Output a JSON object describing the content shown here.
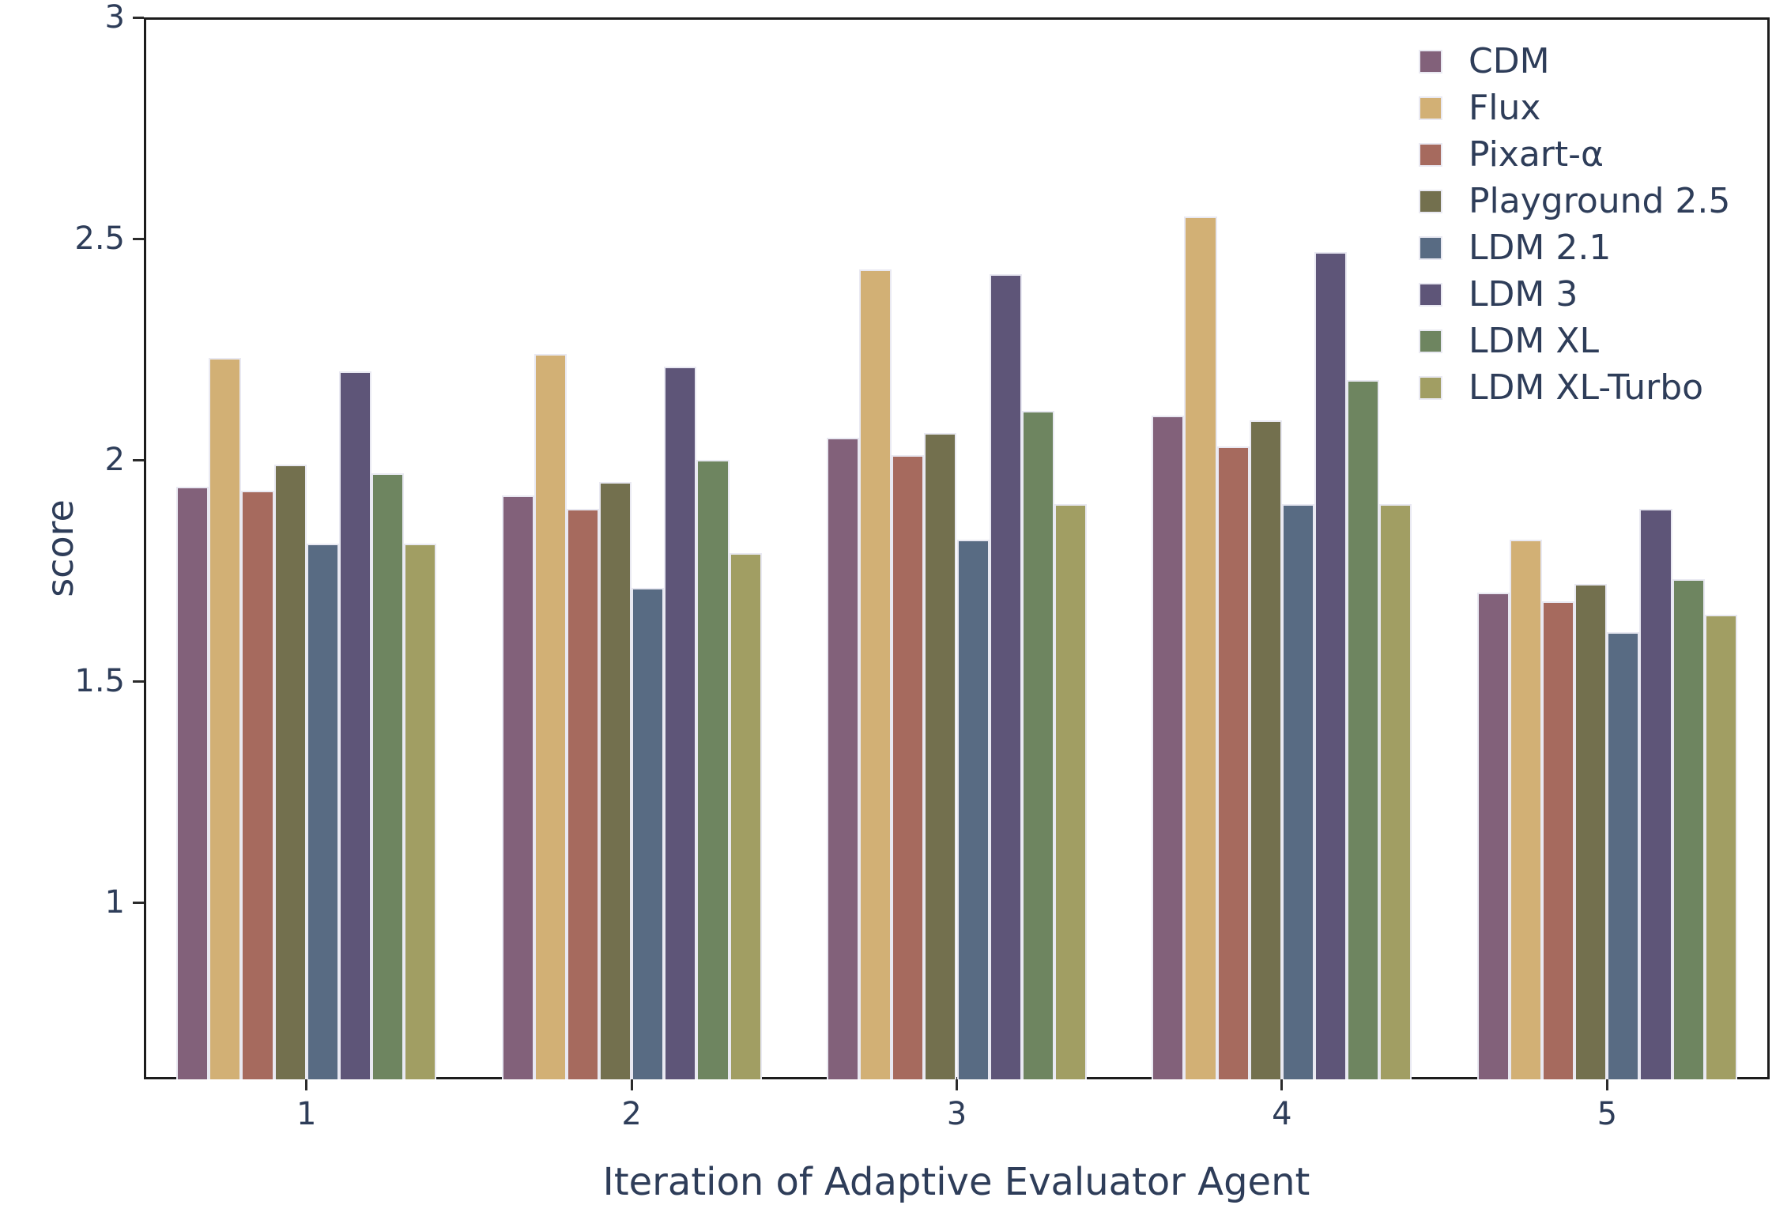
{
  "chart_data": {
    "type": "bar",
    "title": "",
    "xlabel": "Iteration of Adaptive Evaluator Agent",
    "ylabel": "score",
    "categories": [
      "1",
      "2",
      "3",
      "4",
      "5"
    ],
    "ylim": [
      0.6,
      3.0
    ],
    "yticks": [
      {
        "value": 3.0,
        "label": "3"
      },
      {
        "value": 2.5,
        "label": "2.5"
      },
      {
        "value": 2.0,
        "label": "2"
      },
      {
        "value": 1.5,
        "label": "1.5"
      },
      {
        "value": 1.0,
        "label": "1"
      }
    ],
    "grid": false,
    "legend_position": "upper-right-inside",
    "series": [
      {
        "name": "CDM",
        "color": "#82617a",
        "values": [
          1.94,
          1.92,
          2.05,
          2.1,
          1.7
        ]
      },
      {
        "name": "Flux",
        "color": "#d2b075",
        "values": [
          2.23,
          2.24,
          2.43,
          2.55,
          1.82
        ]
      },
      {
        "name": "Pixart-α",
        "color": "#a66a5e",
        "values": [
          1.93,
          1.89,
          2.01,
          2.03,
          1.68
        ]
      },
      {
        "name": "Playground 2.5",
        "color": "#73704e",
        "values": [
          1.99,
          1.95,
          2.06,
          2.09,
          1.72
        ]
      },
      {
        "name": "LDM 2.1",
        "color": "#586b83",
        "values": [
          1.81,
          1.71,
          1.82,
          1.9,
          1.61
        ]
      },
      {
        "name": "LDM 3",
        "color": "#5e5578",
        "values": [
          2.2,
          2.21,
          2.42,
          2.47,
          1.89
        ]
      },
      {
        "name": "LDM XL",
        "color": "#6e8560",
        "values": [
          1.97,
          2.0,
          2.11,
          2.18,
          1.73
        ]
      },
      {
        "name": "LDM XL-Turbo",
        "color": "#a19e63",
        "values": [
          1.81,
          1.79,
          1.9,
          1.9,
          1.65
        ]
      }
    ],
    "colors": {
      "text": "#2e3d59",
      "spine": "#1c1c1c",
      "bar_edge": "#e9e9f2",
      "background": "#ffffff"
    }
  }
}
